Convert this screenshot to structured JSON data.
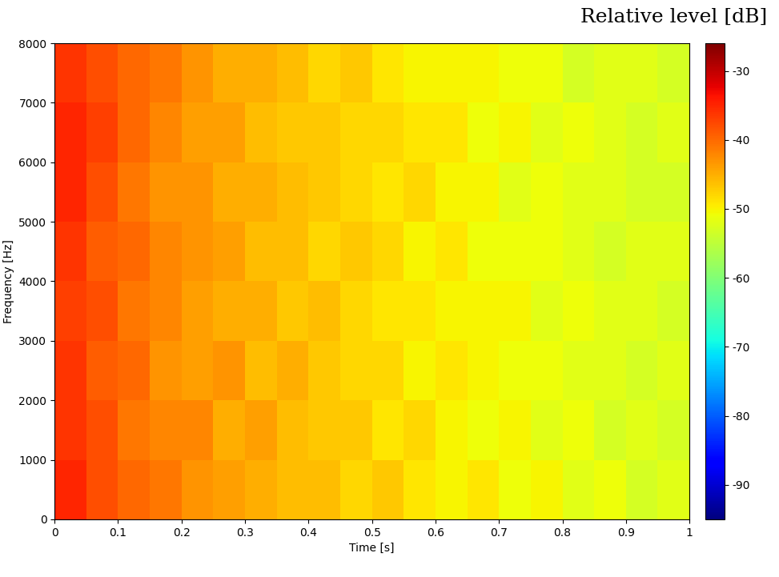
{
  "chart_data": {
    "type": "heatmap",
    "x_label": "Time [s]",
    "y_label": "Frequency [Hz]",
    "colorbar_label": "Relative level [dB]",
    "xlim": [
      0,
      1
    ],
    "ylim": [
      0,
      8000
    ],
    "xticks": [
      0,
      0.1,
      0.2,
      0.3,
      0.4,
      0.5,
      0.6,
      0.7,
      0.8,
      0.9,
      1
    ],
    "yticks": [
      0,
      1000,
      2000,
      3000,
      4000,
      5000,
      6000,
      7000,
      8000
    ],
    "x_edges": [
      0,
      0.05,
      0.1,
      0.15,
      0.2,
      0.25,
      0.3,
      0.35,
      0.4,
      0.45,
      0.5,
      0.55,
      0.6,
      0.65,
      0.7,
      0.75,
      0.8,
      0.85,
      0.9,
      0.95,
      1
    ],
    "y_edges": [
      0,
      1000,
      2000,
      3000,
      4000,
      5000,
      6000,
      7000,
      8000
    ],
    "cells": [
      [
        -35,
        -38,
        -40,
        -41,
        -43,
        -44,
        -45,
        -46,
        -46,
        -48,
        -47,
        -49,
        -50,
        -49,
        -51,
        -50,
        -52,
        -51,
        -53,
        -52
      ],
      [
        -36,
        -38,
        -41,
        -42,
        -42,
        -45,
        -44,
        -46,
        -47,
        -47,
        -49,
        -48,
        -50,
        -51,
        -50,
        -52,
        -51,
        -53,
        -52,
        -53
      ],
      [
        -36,
        -39,
        -40,
        -43,
        -44,
        -43,
        -46,
        -45,
        -47,
        -48,
        -48,
        -50,
        -49,
        -50,
        -51,
        -51,
        -52,
        -52,
        -53,
        -52
      ],
      [
        -37,
        -38,
        -41,
        -42,
        -44,
        -45,
        -45,
        -47,
        -46,
        -48,
        -49,
        -49,
        -50,
        -50,
        -50,
        -52,
        -51,
        -52,
        -52,
        -53
      ],
      [
        -36,
        -39,
        -40,
        -42,
        -43,
        -44,
        -46,
        -46,
        -48,
        -47,
        -48,
        -50,
        -49,
        -51,
        -51,
        -51,
        -52,
        -53,
        -52,
        -52
      ],
      [
        -35,
        -38,
        -41,
        -43,
        -43,
        -45,
        -45,
        -46,
        -47,
        -48,
        -49,
        -48,
        -50,
        -50,
        -52,
        -51,
        -52,
        -52,
        -53,
        -53
      ],
      [
        -35,
        -37,
        -40,
        -42,
        -44,
        -44,
        -46,
        -47,
        -47,
        -48,
        -48,
        -49,
        -49,
        -51,
        -50,
        -52,
        -51,
        -52,
        -53,
        -52
      ],
      [
        -36,
        -38,
        -40,
        -41,
        -43,
        -45,
        -45,
        -46,
        -48,
        -47,
        -49,
        -50,
        -50,
        -50,
        -51,
        -51,
        -53,
        -52,
        -52,
        -53
      ]
    ],
    "colorbar_range": [
      -95,
      -26
    ],
    "colorbar_ticks": [
      -30,
      -40,
      -50,
      -60,
      -70,
      -80,
      -90
    ],
    "grid": false
  }
}
